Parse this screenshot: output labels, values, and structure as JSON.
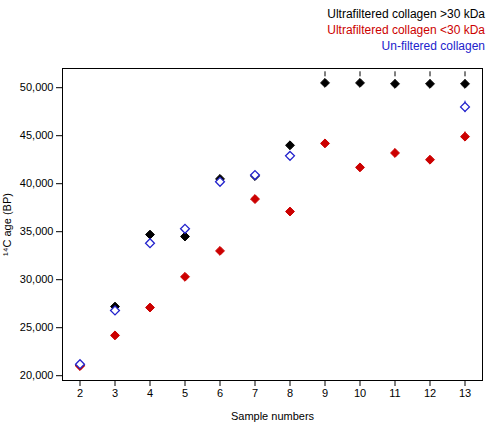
{
  "chart_data": {
    "type": "scatter",
    "xlabel": "Sample numbers",
    "ylabel": "¹⁴C age (BP)",
    "x": [
      2,
      3,
      4,
      5,
      6,
      7,
      8,
      9,
      10,
      11,
      12,
      13
    ],
    "series": [
      {
        "name": "Ultrafiltered collagen >30 kDa",
        "color": "#000000",
        "marker": "diamond",
        "values": [
          21100,
          27200,
          34700,
          34500,
          40500,
          40800,
          44000,
          50500,
          50500,
          50400,
          50400,
          50400
        ],
        "yerr": [
          200,
          200,
          300,
          300,
          200,
          200,
          300,
          300,
          300,
          300,
          300,
          300
        ]
      },
      {
        "name": "Ultrafiltered collagen <30 kDa",
        "color": "#cc0000",
        "marker": "diamond",
        "values": [
          21000,
          24200,
          27100,
          30300,
          33000,
          38400,
          37100,
          44200,
          41700,
          43200,
          42500,
          44900
        ],
        "yerr": [
          250,
          250,
          250,
          300,
          300,
          300,
          300,
          400,
          400,
          400,
          300,
          500
        ]
      },
      {
        "name": "Un-filtered collagen",
        "color": "#2222cc",
        "marker": "open_diamond",
        "x": [
          2,
          3,
          4,
          5,
          6,
          7,
          8,
          13
        ],
        "values": [
          21200,
          26800,
          33800,
          35300,
          40200,
          40900,
          42900,
          48000
        ],
        "yerr": [
          200,
          200,
          300,
          300,
          250,
          250,
          300,
          600
        ]
      }
    ],
    "dashed_lines": {
      "x": [
        9,
        10,
        11,
        12,
        13
      ],
      "from": 50300,
      "color": "#000000",
      "line_style": "dashed"
    },
    "xlim": [
      1.5,
      13.5
    ],
    "xticks": [
      2,
      3,
      4,
      5,
      6,
      7,
      8,
      9,
      10,
      11,
      12,
      13
    ],
    "ylim": [
      19500,
      52000
    ],
    "yticks": [
      {
        "value": 20000,
        "label": "20,000"
      },
      {
        "value": 25000,
        "label": "25,000"
      },
      {
        "value": 30000,
        "label": "30,000"
      },
      {
        "value": 35000,
        "label": "35,000"
      },
      {
        "value": 40000,
        "label": "40,000"
      },
      {
        "value": 45000,
        "label": "45,000"
      },
      {
        "value": 50000,
        "label": "50,000"
      }
    ],
    "grid": false,
    "legend": "upper right"
  }
}
